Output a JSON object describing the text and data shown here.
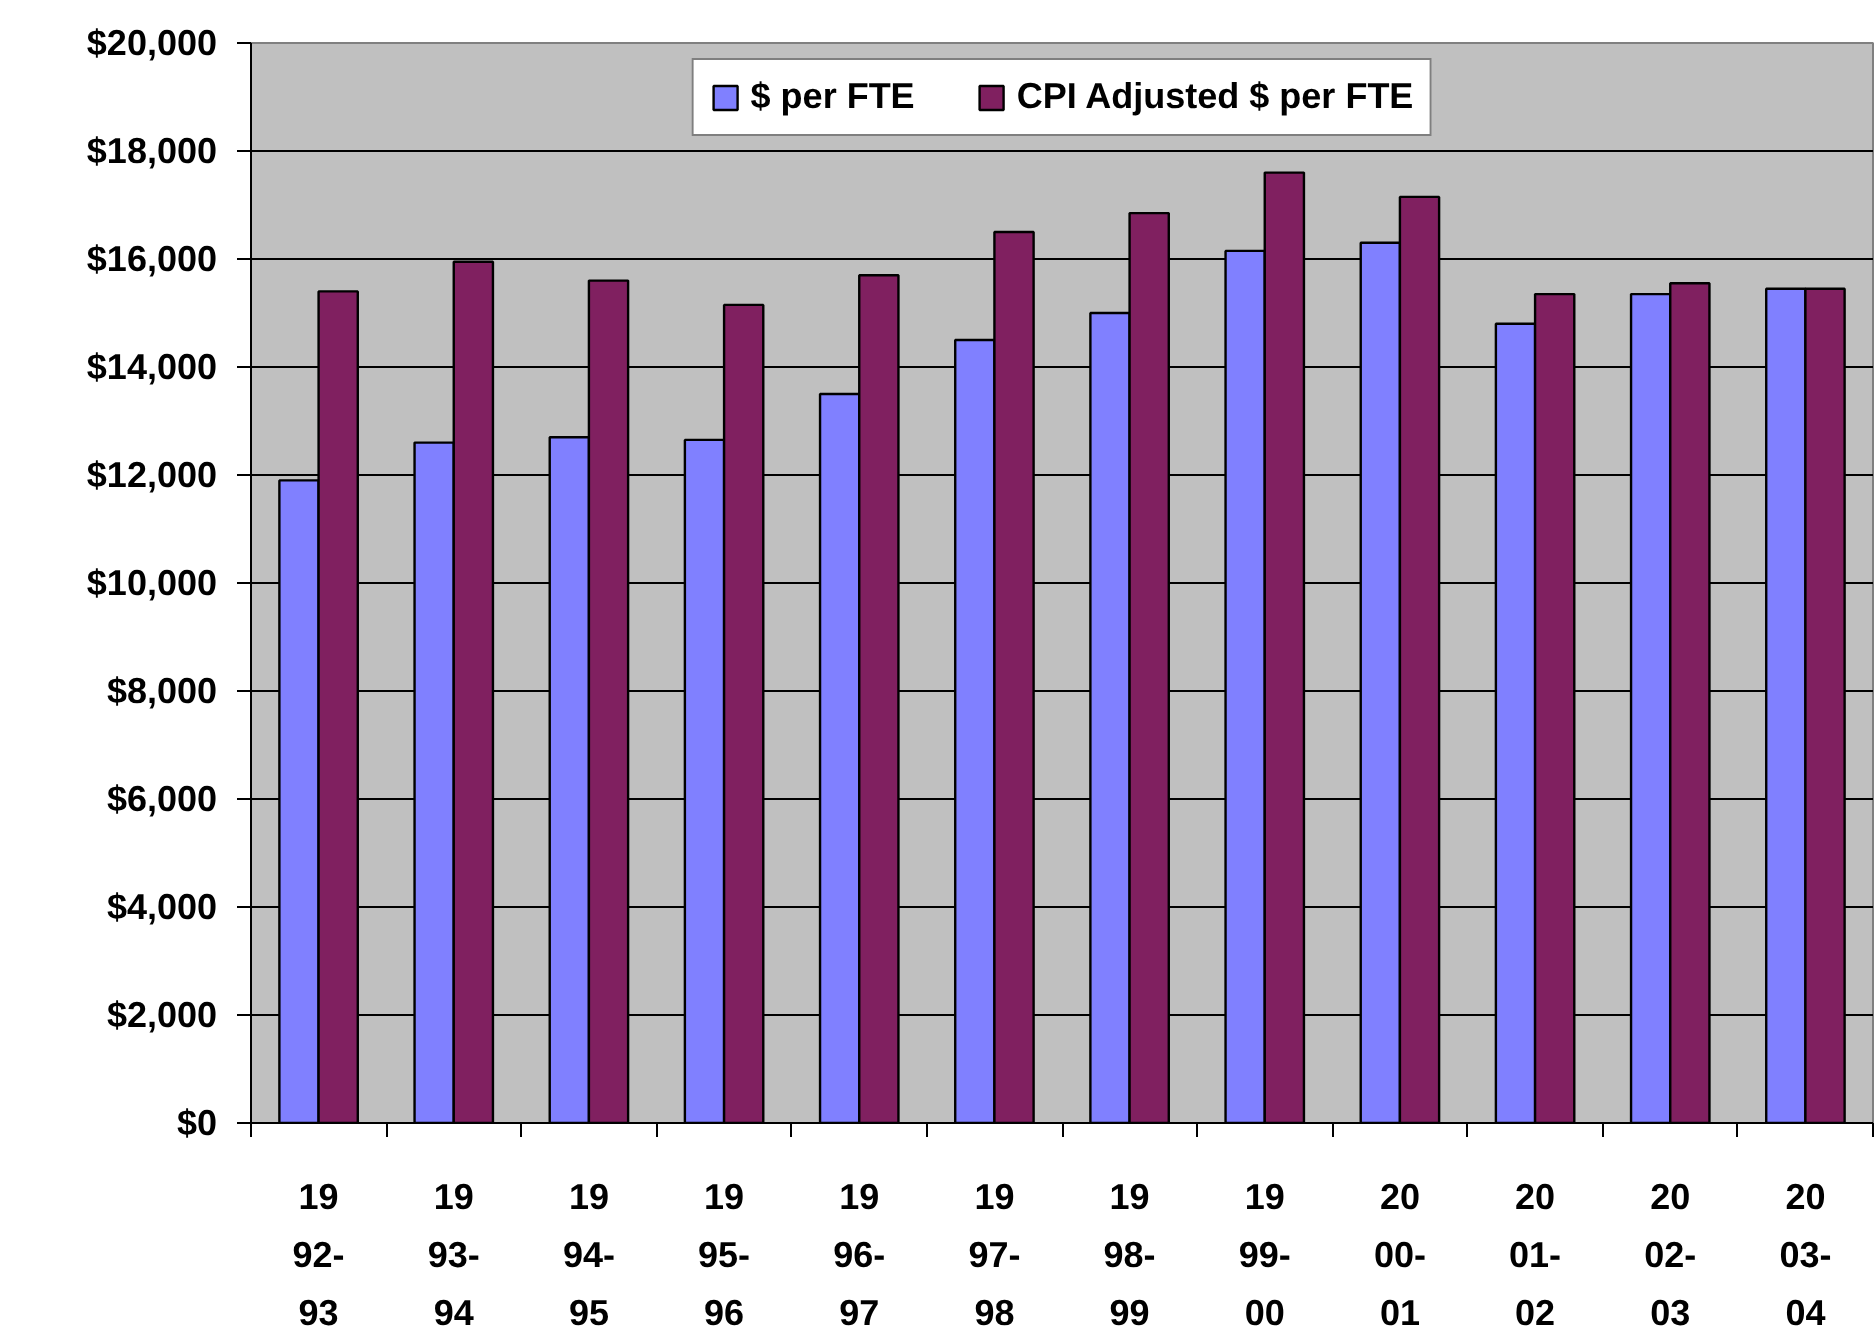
{
  "chart_data": {
    "type": "bar",
    "categories": [
      "1992-93",
      "1993-94",
      "1994-95",
      "1995-96",
      "1996-97",
      "1997-98",
      "1998-99",
      "1999-00",
      "2000-01",
      "2001-02",
      "2002-03",
      "2003-04"
    ],
    "series": [
      {
        "name": "$ per FTE",
        "color": "#8080ff",
        "values": [
          11900,
          12600,
          12700,
          12650,
          13500,
          14500,
          15000,
          16150,
          16300,
          14800,
          15350,
          15450
        ]
      },
      {
        "name": "CPI Adjusted $ per FTE",
        "color": "#802060",
        "values": [
          15400,
          15950,
          15600,
          15150,
          15700,
          16500,
          16850,
          17600,
          17150,
          15350,
          15550,
          15450
        ]
      }
    ],
    "ylim": [
      0,
      20000
    ],
    "yticks": [
      {
        "value": 0,
        "label": "$0"
      },
      {
        "value": 2000,
        "label": "$2,000"
      },
      {
        "value": 4000,
        "label": "$4,000"
      },
      {
        "value": 6000,
        "label": "$6,000"
      },
      {
        "value": 8000,
        "label": "$8,000"
      },
      {
        "value": 10000,
        "label": "$10,000"
      },
      {
        "value": 12000,
        "label": "$12,000"
      },
      {
        "value": 14000,
        "label": "$14,000"
      },
      {
        "value": 16000,
        "label": "$16,000"
      },
      {
        "value": 18000,
        "label": "$18,000"
      },
      {
        "value": 20000,
        "label": "$20,000"
      }
    ],
    "grid": "y",
    "legend": "top"
  }
}
